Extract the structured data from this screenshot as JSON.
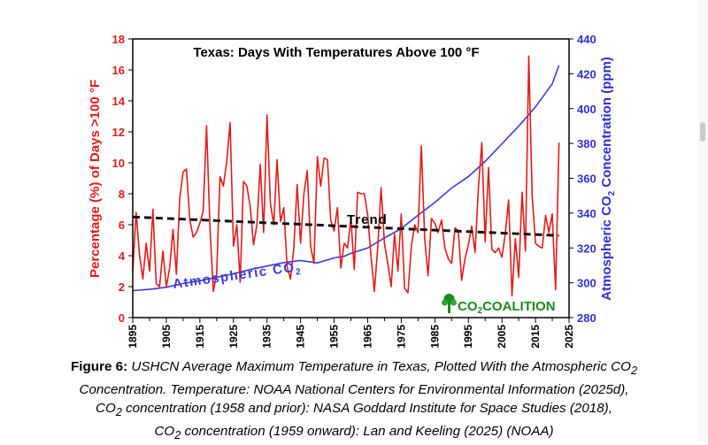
{
  "chart_data": {
    "type": "line",
    "title": "Texas: Days With Temperatures Above 100 °F",
    "ylabel_left": "Percentage (%) of Days >100 °F",
    "ylabel_right_pre": "Atmospheric CO",
    "ylabel_right_sub": "2",
    "ylabel_right_post": " Concentration (ppm)",
    "xlim": [
      1895,
      2025
    ],
    "ylim_left": [
      0,
      18
    ],
    "ylim_right": [
      280,
      440
    ],
    "x_ticks": [
      "1895",
      "1905",
      "1915",
      "1925",
      "1935",
      "1945",
      "1955",
      "1965",
      "1975",
      "1985",
      "1995",
      "2005",
      "2015",
      "2025"
    ],
    "y_ticks_left": [
      "0",
      "2",
      "4",
      "6",
      "8",
      "10",
      "12",
      "14",
      "16",
      "18"
    ],
    "y_ticks_right": [
      "280",
      "300",
      "320",
      "340",
      "360",
      "380",
      "400",
      "420",
      "440"
    ],
    "series": [
      {
        "name": "",
        "axis": "left",
        "color": "#e31b1b",
        "x": [
          1895,
          1896,
          1897,
          1898,
          1899,
          1900,
          1901,
          1902,
          1903,
          1904,
          1905,
          1906,
          1907,
          1908,
          1909,
          1910,
          1911,
          1912,
          1913,
          1914,
          1915,
          1916,
          1917,
          1918,
          1919,
          1920,
          1921,
          1922,
          1923,
          1924,
          1925,
          1926,
          1927,
          1928,
          1929,
          1930,
          1931,
          1932,
          1933,
          1934,
          1935,
          1936,
          1937,
          1938,
          1939,
          1940,
          1941,
          1942,
          1943,
          1944,
          1945,
          1946,
          1947,
          1948,
          1949,
          1950,
          1951,
          1952,
          1953,
          1954,
          1955,
          1956,
          1957,
          1958,
          1959,
          1960,
          1961,
          1962,
          1963,
          1964,
          1965,
          1966,
          1967,
          1968,
          1969,
          1970,
          1971,
          1972,
          1973,
          1974,
          1975,
          1976,
          1977,
          1978,
          1979,
          1980,
          1981,
          1982,
          1983,
          1984,
          1985,
          1986,
          1987,
          1988,
          1989,
          1990,
          1991,
          1992,
          1993,
          1994,
          1995,
          1996,
          1997,
          1998,
          1999,
          2000,
          2001,
          2002,
          2003,
          2004,
          2005,
          2006,
          2007,
          2008,
          2009,
          2010,
          2011,
          2012,
          2013,
          2014,
          2015,
          2016,
          2017,
          2018,
          2019,
          2020,
          2021,
          2022
        ],
        "values": [
          3.0,
          6.8,
          4.1,
          2.5,
          4.8,
          3.0,
          7.0,
          2.2,
          2.0,
          4.3,
          2.0,
          3.2,
          5.7,
          2.8,
          7.7,
          9.4,
          9.6,
          6.3,
          5.2,
          5.5,
          6.1,
          6.9,
          12.4,
          5.9,
          1.7,
          2.8,
          9.1,
          8.5,
          10.1,
          12.6,
          4.6,
          6.0,
          2.3,
          8.8,
          8.5,
          7.2,
          4.7,
          6.0,
          9.9,
          5.5,
          13.1,
          7.4,
          6.0,
          10.2,
          6.2,
          7.1,
          3.3,
          2.5,
          4.5,
          8.6,
          4.8,
          8.0,
          9.5,
          4.6,
          3.5,
          10.4,
          8.5,
          10.3,
          10.2,
          6.3,
          5.6,
          7.1,
          3.2,
          4.8,
          4.5,
          6.4,
          3.1,
          8.1,
          8.0,
          8.0,
          6.6,
          3.9,
          1.7,
          4.5,
          8.4,
          4.8,
          3.5,
          2.0,
          5.4,
          3.0,
          6.7,
          1.9,
          1.6,
          4.6,
          6.0,
          5.5,
          11.1,
          5.1,
          2.7,
          6.4,
          6.1,
          5.5,
          6.3,
          4.5,
          3.8,
          3.5,
          5.8,
          5.6,
          2.4,
          3.8,
          4.7,
          5.9,
          4.2,
          8.4,
          11.3,
          4.9,
          9.7,
          4.4,
          4.2,
          4.5,
          3.9,
          5.4,
          7.6,
          1.4,
          5.1,
          2.6,
          8.1,
          4.3,
          16.9,
          7.9,
          4.8,
          4.6,
          4.5,
          6.6,
          5.5,
          6.7,
          1.8,
          11.3
        ]
      },
      {
        "name": "Trend",
        "axis": "left",
        "style": "dashed",
        "color": "#111111",
        "x": [
          1895,
          2022
        ],
        "values": [
          6.5,
          5.3
        ]
      },
      {
        "name": "Atmospheric CO2",
        "axis": "right",
        "color": "#3a3ad9",
        "x": [
          1895,
          1900,
          1905,
          1910,
          1915,
          1920,
          1925,
          1930,
          1935,
          1940,
          1945,
          1950,
          1955,
          1958,
          1960,
          1965,
          1970,
          1975,
          1980,
          1985,
          1990,
          1995,
          2000,
          2005,
          2010,
          2015,
          2020,
          2022
        ],
        "values": [
          295.5,
          296.2,
          297.4,
          299.6,
          301.2,
          303.1,
          305.2,
          307.6,
          309.6,
          311.6,
          312.8,
          311.4,
          314.3,
          315.2,
          316.9,
          320.0,
          325.7,
          331.1,
          338.8,
          346.1,
          354.4,
          360.9,
          369.7,
          379.8,
          389.9,
          401.0,
          414.2,
          424.8
        ]
      }
    ],
    "annotations": {
      "trend_label": "Trend",
      "co2_label_pre": "Atmospheric CO",
      "co2_label_sub": "2"
    },
    "logo": {
      "co2_pre": "CO",
      "co2_sub": "2",
      "coalition": "COALITION",
      "color": "#1a8a1a",
      "icon": "tree-icon"
    }
  },
  "caption": {
    "fig_label": "Figure 6:",
    "line1": " USHCN Average Maximum Temperature in Texas, Plotted With the Atmospheric CO",
    "line1_sub": "2",
    "line2": "Concentration. Temperature: NOAA National Centers for Environmental Information (2025d),",
    "line3_pre": "CO",
    "line3_sub": "2",
    "line3_post": " concentration (1958 and prior): NASA Goddard Institute for Space Studies (2018),",
    "line4_pre": "CO",
    "line4_sub": "2",
    "line4_post": " concentration (1959 onward): Lan and Keeling (2025) (NOAA)"
  },
  "colors": {
    "temperature": "#e31b1b",
    "co2": "#3a3ad9",
    "trend": "#111111"
  }
}
